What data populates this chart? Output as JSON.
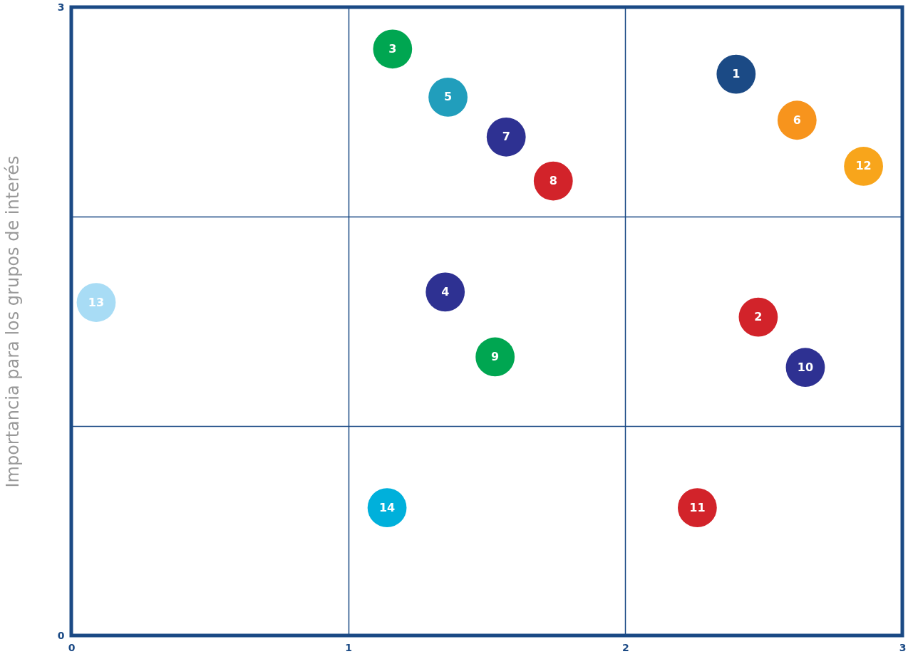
{
  "chart_data": {
    "type": "scatter",
    "ylabel": "Importancia para los grupos de interés",
    "xlim": [
      0,
      3
    ],
    "ylim": [
      0,
      3
    ],
    "xticks": [
      0,
      1,
      2,
      3
    ],
    "yticks": [
      0,
      {
        "value": 1,
        "label": null
      },
      {
        "value": 2,
        "label": null
      },
      3
    ],
    "grid": true,
    "marker": "circle",
    "series": [
      {
        "name": "1",
        "color": "#1b4a85",
        "x": [
          2.4
        ],
        "values": [
          2.68
        ]
      },
      {
        "name": "2",
        "color": "#d2232a",
        "x": [
          2.48
        ],
        "values": [
          1.52
        ]
      },
      {
        "name": "3",
        "color": "#00a651",
        "x": [
          1.16
        ],
        "values": [
          2.8
        ]
      },
      {
        "name": "4",
        "color": "#2e3192",
        "x": [
          1.35
        ],
        "values": [
          1.64
        ]
      },
      {
        "name": "5",
        "color": "#219ebc",
        "x": [
          1.36
        ],
        "values": [
          2.57
        ]
      },
      {
        "name": "6",
        "color": "#f7941d",
        "x": [
          2.62
        ],
        "values": [
          2.46
        ]
      },
      {
        "name": "7",
        "color": "#2e3192",
        "x": [
          1.57
        ],
        "values": [
          2.38
        ]
      },
      {
        "name": "8",
        "color": "#d2232a",
        "x": [
          1.74
        ],
        "values": [
          2.17
        ]
      },
      {
        "name": "9",
        "color": "#00a651",
        "x": [
          1.53
        ],
        "values": [
          1.33
        ]
      },
      {
        "name": "10",
        "color": "#2e3192",
        "x": [
          2.65
        ],
        "values": [
          1.28
        ]
      },
      {
        "name": "11",
        "color": "#d2232a",
        "x": [
          2.26
        ],
        "values": [
          0.61
        ]
      },
      {
        "name": "12",
        "color": "#f8a51b",
        "x": [
          2.86
        ],
        "values": [
          2.24
        ]
      },
      {
        "name": "13",
        "color": "#a8dcf5",
        "x": [
          0.09
        ],
        "values": [
          1.59
        ]
      },
      {
        "name": "14",
        "color": "#00b0db",
        "x": [
          1.14
        ],
        "values": [
          0.61
        ]
      }
    ]
  }
}
